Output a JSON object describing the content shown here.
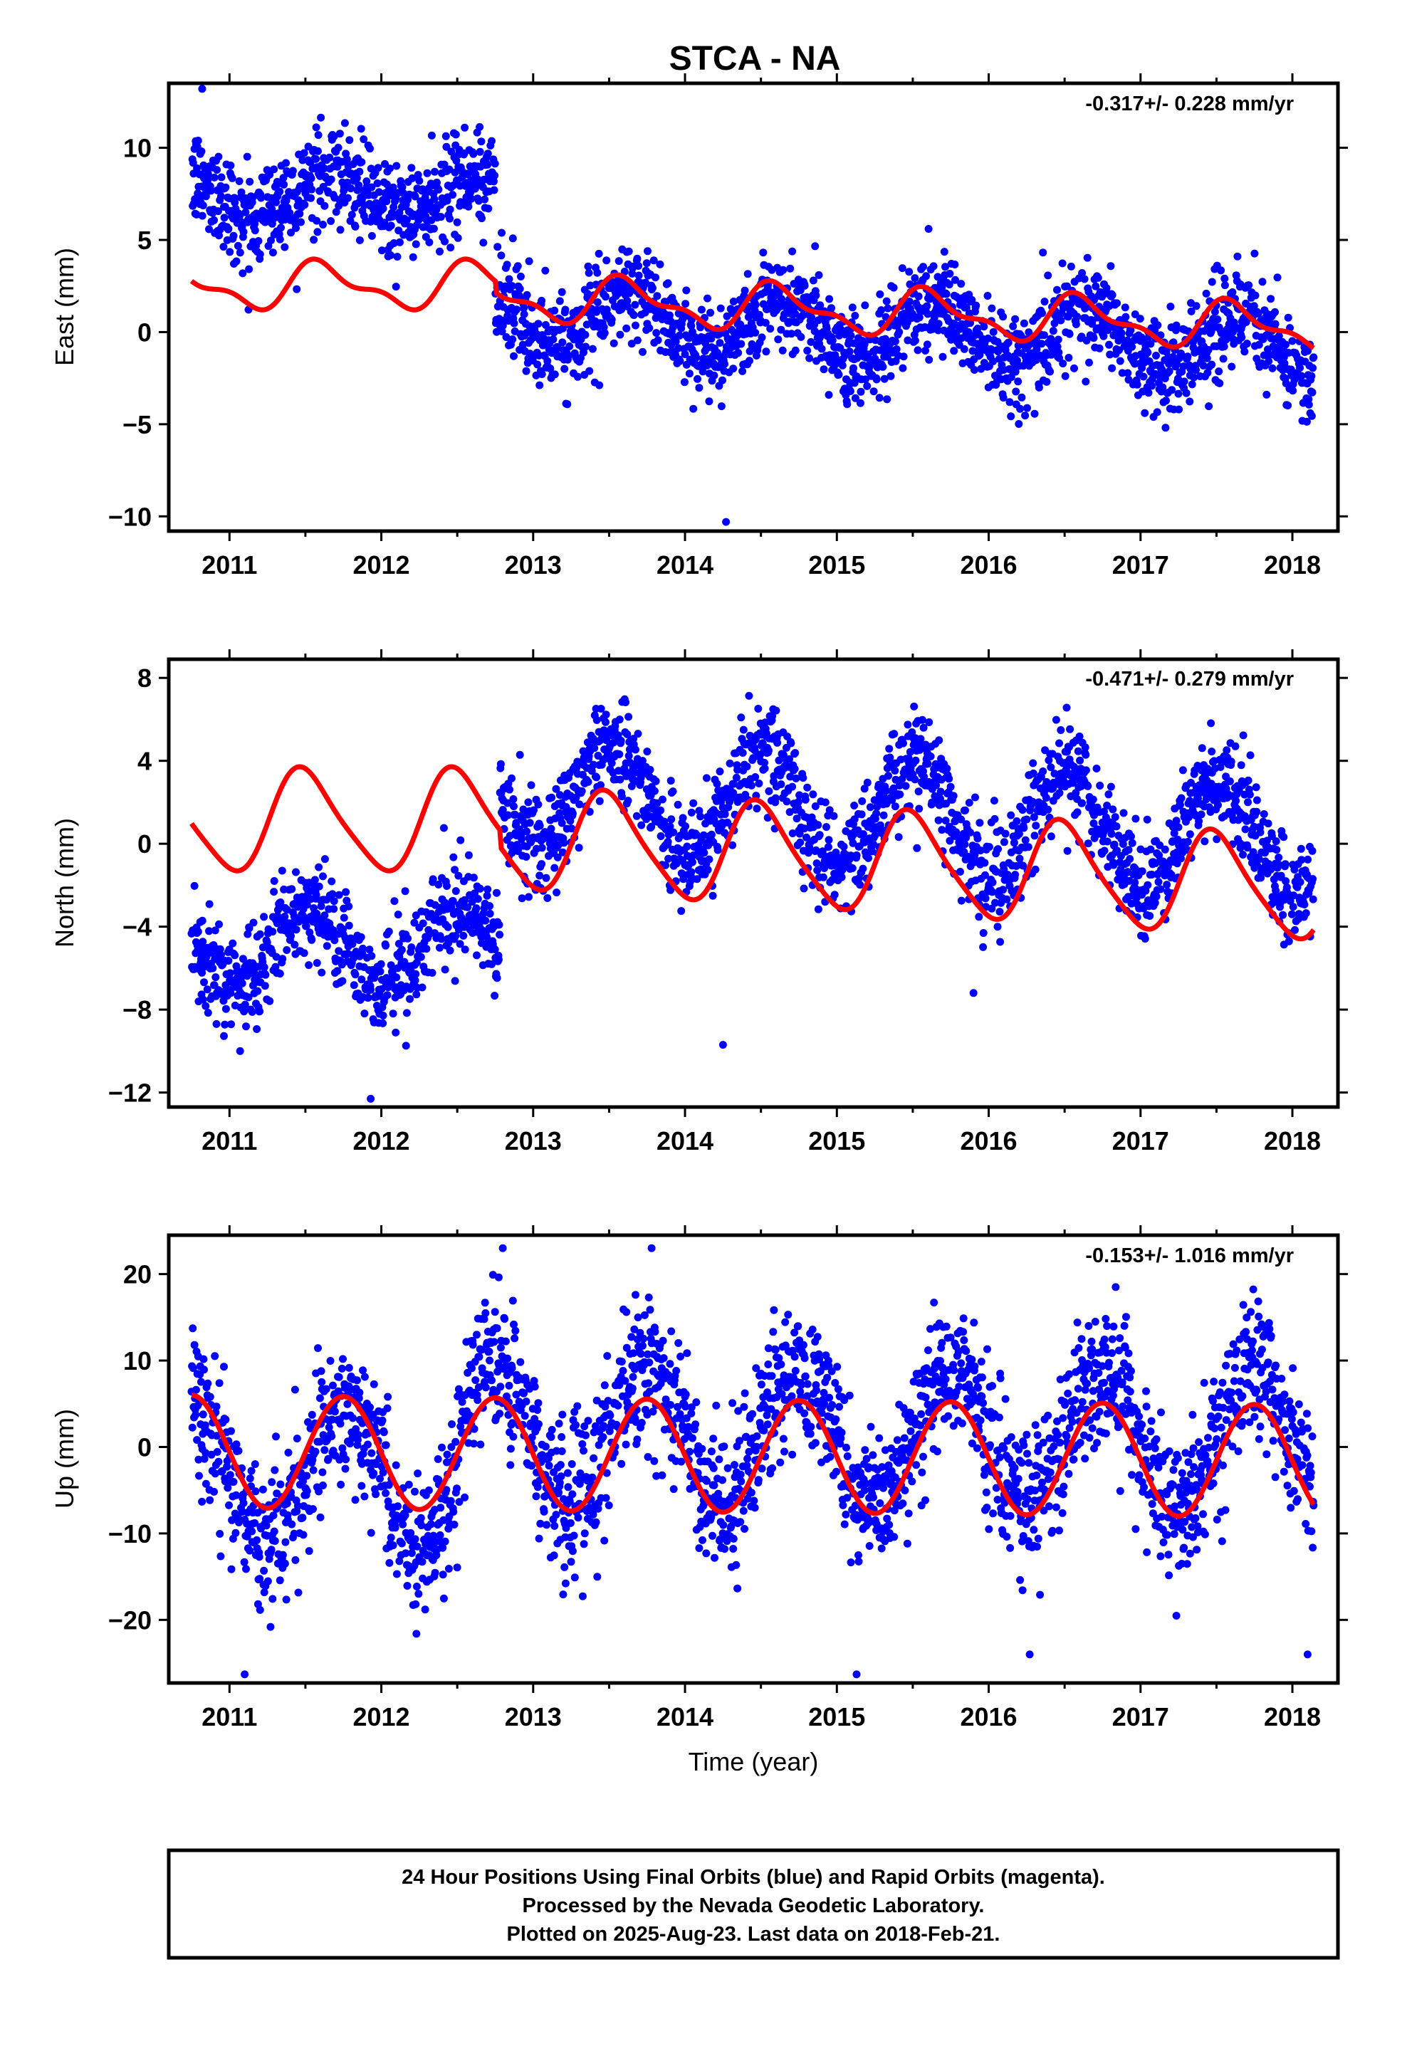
{
  "title": "STCA - NA",
  "colors": {
    "final": "#0000ff",
    "model": "#ff0000",
    "axis": "#000000"
  },
  "xlabel": "Time (year)",
  "footer": {
    "line1": "24 Hour Positions Using Final Orbits (blue) and Rapid Orbits (magenta).",
    "line2": "Processed by the Nevada Geodetic Laboratory.",
    "line3": "Plotted on 2025-Aug-23. Last data on 2018-Feb-21."
  },
  "chart_data": [
    {
      "type": "scatter",
      "id": "east",
      "ylabel": "East (mm)",
      "rate_label": "-0.317+/- 0.228 mm/yr",
      "xlim": [
        2010.6,
        2018.3
      ],
      "ylim": [
        -10.8,
        13.5
      ],
      "xticks": [
        2011,
        2012,
        2013,
        2014,
        2015,
        2016,
        2017,
        2018
      ],
      "yticks": [
        -10,
        -5,
        0,
        5,
        10
      ],
      "data_range": [
        2010.75,
        2018.14
      ],
      "offset_epoch": 2012.75,
      "series_profile": {
        "pre_offset_mean": 7.5,
        "post_offset_mean": 0.9,
        "post_offset_trend": -0.317,
        "annual_amp": 1.5,
        "annual_peak": 0.65,
        "scatter_std": 1.3
      },
      "model_profile": {
        "pre_offset_mean": 2.5,
        "post_offset_mean": 1.9,
        "trend": -0.317,
        "annual_amp": 1.1,
        "annual_peak": 0.62,
        "semiannual_amp": 0.5
      },
      "outliers": [
        [
          2010.82,
          13.2
        ],
        [
          2014.27,
          -10.3
        ]
      ]
    },
    {
      "type": "scatter",
      "id": "north",
      "ylabel": "North (mm)",
      "rate_label": "-0.471+/- 0.279 mm/yr",
      "xlim": [
        2010.6,
        2018.3
      ],
      "ylim": [
        -12.7,
        8.9
      ],
      "xticks": [
        2011,
        2012,
        2013,
        2014,
        2015,
        2016,
        2017,
        2018
      ],
      "yticks": [
        -12,
        -8,
        -4,
        0,
        4,
        8
      ],
      "data_range": [
        2010.75,
        2018.14
      ],
      "offset_epoch": 2012.78,
      "series_profile": {
        "pre_offset_mean": -5.0,
        "post_offset_mean": 2.6,
        "post_offset_trend": -0.471,
        "annual_amp": 2.6,
        "annual_peak": 0.52,
        "scatter_std": 1.2
      },
      "model_profile": {
        "pre_offset_mean": 1.1,
        "post_offset_mean": 0.3,
        "trend": -0.471,
        "annual_amp": 2.4,
        "annual_peak": 0.5,
        "semiannual_amp": 0.4
      },
      "outliers": [
        [
          2014.25,
          -9.7
        ],
        [
          2015.9,
          -7.2
        ],
        [
          2011.93,
          -12.3
        ],
        [
          2011.07,
          -10.0
        ]
      ]
    },
    {
      "type": "scatter",
      "id": "up",
      "ylabel": "Up (mm)",
      "rate_label": "-0.153+/- 1.016 mm/yr",
      "xlim": [
        2010.6,
        2018.3
      ],
      "ylim": [
        -27.3,
        24.5
      ],
      "xticks": [
        2011,
        2012,
        2013,
        2014,
        2015,
        2016,
        2017,
        2018
      ],
      "yticks": [
        -20,
        -10,
        0,
        10,
        20
      ],
      "data_range": [
        2010.75,
        2018.14
      ],
      "series_profile": {
        "mean_pre_2012_5": -3.5,
        "mean_post_2012_5": 1.5,
        "trend": -0.153,
        "annual_amp": 8.0,
        "annual_peak": 0.75,
        "scatter_std": 4.0
      },
      "model_profile": {
        "mean": -1.0,
        "trend": -0.153,
        "annual_amp": 6.5,
        "annual_peak": 0.75
      },
      "outliers": [
        [
          2011.1,
          -26.3
        ],
        [
          2015.13,
          -26.3
        ],
        [
          2012.8,
          23.0
        ],
        [
          2013.78,
          23.0
        ],
        [
          2018.1,
          -24.0
        ],
        [
          2016.27,
          -24.0
        ]
      ]
    }
  ]
}
